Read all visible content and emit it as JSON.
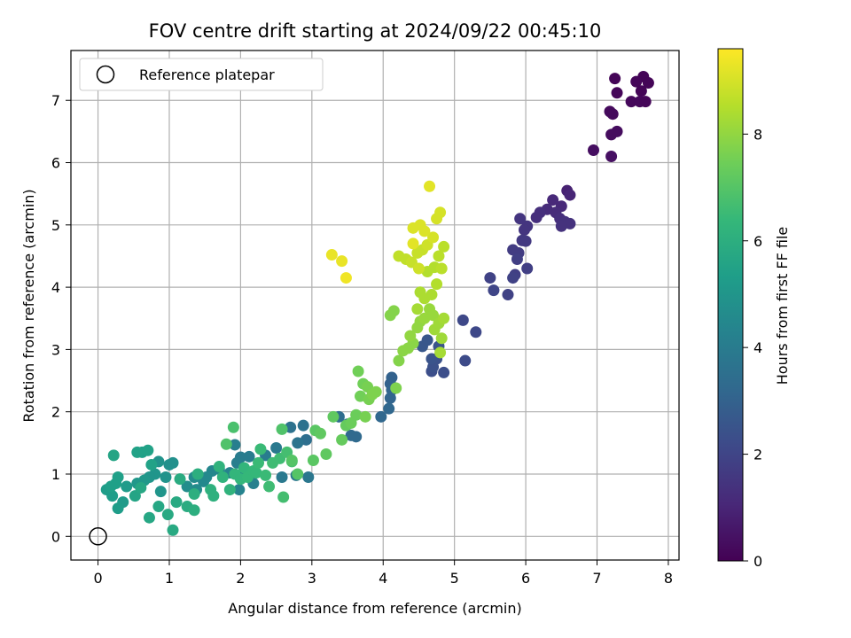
{
  "chart_data": {
    "type": "scatter",
    "title": "FOV centre drift starting at 2024/09/22 00:45:10",
    "xlabel": "Angular distance from reference (arcmin)",
    "ylabel": "Rotation from reference (arcmin)",
    "xlim": [
      -0.38,
      8.15
    ],
    "ylim": [
      -0.38,
      7.8
    ],
    "xticks": [
      0,
      1,
      2,
      3,
      4,
      5,
      6,
      7,
      8
    ],
    "yticks": [
      0,
      1,
      2,
      3,
      4,
      5,
      6,
      7
    ],
    "grid": true,
    "legend": {
      "placement": "top-left",
      "entries": [
        "Reference platepar"
      ]
    },
    "reference_point": {
      "x": 0,
      "y": 0,
      "marker": "open-circle"
    },
    "colorbar": {
      "label": "Hours from first FF file",
      "range": [
        0,
        9.6
      ],
      "ticks": [
        0,
        2,
        4,
        6,
        8
      ],
      "colormap": "viridis"
    },
    "colormap_stops": [
      "#440154",
      "#482878",
      "#3e4989",
      "#31688e",
      "#26828e",
      "#1f9e89",
      "#35b779",
      "#6ece58",
      "#b5de2b",
      "#fde725"
    ],
    "series": [
      {
        "points": [
          [
            7.25,
            7.35,
            0.1
          ],
          [
            7.65,
            7.38,
            0.1
          ],
          [
            7.72,
            7.28,
            0.1
          ],
          [
            7.55,
            7.3,
            0.15
          ],
          [
            7.62,
            7.15,
            0.1
          ],
          [
            7.28,
            7.12,
            0.15
          ],
          [
            7.48,
            6.98,
            0.2
          ],
          [
            7.6,
            6.98,
            0.2
          ],
          [
            7.68,
            6.98,
            0.15
          ],
          [
            7.18,
            6.82,
            0.25
          ],
          [
            7.22,
            6.78,
            0.25
          ],
          [
            7.28,
            6.5,
            0.3
          ],
          [
            7.2,
            6.45,
            0.3
          ],
          [
            6.95,
            6.2,
            0.35
          ],
          [
            7.2,
            6.1,
            0.4
          ],
          [
            6.58,
            5.55,
            0.9
          ],
          [
            6.62,
            5.48,
            1.0
          ],
          [
            6.38,
            5.4,
            1.1
          ],
          [
            6.5,
            5.3,
            1.1
          ],
          [
            6.3,
            5.25,
            1.2
          ],
          [
            6.42,
            5.2,
            1.2
          ],
          [
            6.2,
            5.2,
            1.3
          ],
          [
            6.15,
            5.12,
            1.3
          ],
          [
            6.48,
            5.1,
            1.3
          ],
          [
            6.55,
            5.05,
            1.4
          ],
          [
            6.62,
            5.02,
            1.4
          ],
          [
            6.5,
            4.98,
            1.4
          ],
          [
            5.92,
            5.1,
            1.5
          ],
          [
            6.02,
            4.98,
            1.5
          ],
          [
            5.98,
            4.92,
            1.5
          ],
          [
            5.95,
            4.75,
            1.6
          ],
          [
            6.0,
            4.74,
            1.6
          ],
          [
            5.82,
            4.6,
            1.7
          ],
          [
            5.9,
            4.55,
            1.7
          ],
          [
            5.88,
            4.45,
            1.8
          ],
          [
            6.02,
            4.3,
            1.8
          ],
          [
            5.85,
            4.2,
            1.8
          ],
          [
            5.82,
            4.15,
            1.9
          ],
          [
            5.75,
            3.88,
            1.9
          ],
          [
            5.5,
            4.15,
            1.9
          ],
          [
            5.55,
            3.95,
            2.0
          ],
          [
            5.12,
            3.47,
            2.1
          ],
          [
            5.3,
            3.28,
            2.1
          ],
          [
            5.15,
            2.82,
            2.2
          ],
          [
            4.85,
            2.63,
            2.3
          ],
          [
            4.68,
            2.65,
            2.3
          ],
          [
            4.75,
            2.85,
            2.4
          ],
          [
            4.7,
            2.72,
            2.4
          ],
          [
            4.68,
            2.85,
            2.5
          ],
          [
            4.78,
            3.05,
            2.5
          ],
          [
            4.55,
            3.05,
            2.6
          ],
          [
            4.62,
            3.15,
            2.6
          ],
          [
            4.12,
            2.55,
            3.0
          ],
          [
            4.1,
            2.45,
            3.0
          ],
          [
            4.12,
            2.35,
            3.1
          ],
          [
            4.1,
            2.22,
            3.1
          ],
          [
            4.08,
            2.05,
            3.2
          ],
          [
            3.97,
            1.92,
            3.2
          ],
          [
            3.62,
            1.6,
            3.3
          ],
          [
            3.55,
            1.62,
            3.3
          ],
          [
            3.38,
            1.92,
            3.4
          ],
          [
            3.5,
            1.8,
            3.5
          ],
          [
            2.92,
            1.55,
            3.5
          ],
          [
            2.88,
            1.78,
            3.6
          ],
          [
            2.7,
            1.75,
            3.6
          ],
          [
            2.8,
            1.5,
            3.7
          ],
          [
            2.95,
            0.95,
            3.8
          ],
          [
            2.78,
            0.98,
            3.8
          ],
          [
            2.58,
            0.95,
            3.9
          ],
          [
            2.5,
            1.42,
            3.9
          ],
          [
            2.35,
            1.3,
            4.0
          ],
          [
            2.12,
            1.28,
            4.0
          ],
          [
            2.0,
            1.27,
            4.0
          ],
          [
            1.92,
            1.47,
            4.1
          ],
          [
            1.95,
            1.18,
            4.1
          ],
          [
            2.05,
            1.05,
            4.2
          ],
          [
            2.18,
            0.85,
            4.2
          ],
          [
            1.98,
            0.75,
            4.3
          ],
          [
            1.85,
            1.02,
            4.3
          ],
          [
            1.7,
            1.08,
            4.4
          ],
          [
            1.6,
            1.05,
            4.4
          ],
          [
            1.52,
            0.95,
            4.5
          ],
          [
            1.48,
            0.88,
            4.5
          ],
          [
            1.38,
            0.75,
            4.6
          ],
          [
            1.35,
            0.95,
            4.6
          ],
          [
            1.25,
            0.8,
            4.7
          ],
          [
            1.05,
            1.18,
            4.8
          ],
          [
            1.0,
            1.15,
            4.8
          ],
          [
            0.85,
            1.2,
            4.9
          ],
          [
            0.95,
            0.95,
            4.9
          ],
          [
            0.8,
            1.0,
            5.0
          ],
          [
            0.88,
            0.72,
            5.0
          ],
          [
            0.72,
            0.95,
            5.0
          ],
          [
            0.65,
            0.9,
            5.1
          ],
          [
            0.55,
            0.85,
            5.1
          ],
          [
            0.4,
            0.8,
            5.2
          ],
          [
            0.35,
            0.55,
            5.2
          ],
          [
            0.28,
            0.45,
            5.3
          ],
          [
            0.2,
            0.65,
            5.3
          ],
          [
            0.12,
            0.75,
            5.3
          ],
          [
            0.18,
            0.8,
            5.4
          ],
          [
            0.25,
            0.85,
            5.4
          ],
          [
            0.28,
            0.95,
            5.4
          ],
          [
            0.62,
            1.35,
            5.4
          ],
          [
            0.55,
            1.35,
            5.5
          ],
          [
            0.7,
            1.38,
            5.5
          ],
          [
            0.75,
            1.15,
            5.5
          ],
          [
            0.22,
            1.3,
            5.6
          ],
          [
            0.52,
            0.65,
            5.6
          ],
          [
            0.6,
            0.78,
            5.7
          ],
          [
            0.72,
            0.3,
            5.7
          ],
          [
            0.85,
            0.48,
            5.7
          ],
          [
            0.98,
            0.35,
            5.8
          ],
          [
            1.05,
            0.1,
            5.8
          ],
          [
            1.1,
            0.55,
            5.8
          ],
          [
            1.15,
            0.92,
            5.9
          ],
          [
            1.25,
            0.48,
            5.9
          ],
          [
            1.35,
            0.42,
            6.0
          ],
          [
            1.35,
            0.68,
            6.0
          ],
          [
            1.4,
            1.0,
            6.0
          ],
          [
            1.58,
            0.75,
            6.1
          ],
          [
            1.62,
            0.65,
            6.1
          ],
          [
            1.7,
            1.12,
            6.2
          ],
          [
            1.75,
            0.95,
            6.2
          ],
          [
            1.85,
            0.75,
            6.2
          ],
          [
            1.92,
            1.0,
            6.3
          ],
          [
            2.0,
            0.92,
            6.3
          ],
          [
            2.05,
            1.1,
            6.3
          ],
          [
            2.1,
            0.95,
            6.4
          ],
          [
            2.18,
            1.05,
            6.4
          ],
          [
            2.22,
            1.02,
            6.4
          ],
          [
            2.25,
            1.18,
            6.5
          ],
          [
            2.28,
            1.4,
            6.5
          ],
          [
            2.35,
            0.98,
            6.5
          ],
          [
            2.4,
            0.8,
            6.6
          ],
          [
            2.45,
            1.18,
            6.6
          ],
          [
            2.55,
            1.25,
            6.6
          ],
          [
            2.6,
            0.63,
            6.7
          ],
          [
            2.65,
            1.35,
            6.7
          ],
          [
            2.72,
            1.2,
            6.8
          ],
          [
            1.9,
            1.75,
            6.8
          ],
          [
            1.8,
            1.48,
            6.9
          ],
          [
            2.58,
            1.72,
            6.9
          ],
          [
            2.72,
            1.22,
            7.0
          ],
          [
            2.8,
            1.0,
            7.0
          ],
          [
            3.05,
            1.7,
            7.1
          ],
          [
            3.02,
            1.22,
            7.1
          ],
          [
            3.12,
            1.65,
            7.2
          ],
          [
            3.2,
            1.32,
            7.2
          ],
          [
            3.3,
            1.92,
            7.2
          ],
          [
            3.42,
            1.55,
            7.3
          ],
          [
            3.48,
            1.78,
            7.3
          ],
          [
            3.55,
            1.82,
            7.4
          ],
          [
            3.62,
            1.95,
            7.4
          ],
          [
            3.65,
            2.65,
            7.5
          ],
          [
            3.68,
            2.25,
            7.5
          ],
          [
            3.72,
            2.45,
            7.5
          ],
          [
            3.78,
            2.4,
            7.6
          ],
          [
            3.8,
            2.2,
            7.6
          ],
          [
            3.75,
            1.92,
            7.6
          ],
          [
            3.85,
            2.28,
            7.7
          ],
          [
            3.9,
            2.32,
            7.7
          ],
          [
            4.18,
            2.38,
            7.7
          ],
          [
            4.1,
            3.55,
            7.8
          ],
          [
            4.15,
            3.62,
            7.8
          ],
          [
            4.22,
            2.82,
            7.8
          ],
          [
            4.28,
            2.98,
            7.9
          ],
          [
            4.35,
            3.02,
            7.9
          ],
          [
            4.42,
            3.1,
            7.9
          ],
          [
            4.38,
            3.22,
            8.0
          ],
          [
            4.48,
            3.35,
            8.0
          ],
          [
            4.52,
            3.45,
            8.0
          ],
          [
            4.58,
            3.5,
            8.1
          ],
          [
            4.65,
            3.65,
            8.1
          ],
          [
            4.7,
            3.55,
            8.1
          ],
          [
            4.72,
            3.32,
            8.2
          ],
          [
            4.78,
            3.42,
            8.2
          ],
          [
            4.82,
            3.18,
            8.2
          ],
          [
            4.8,
            2.95,
            8.3
          ],
          [
            4.85,
            3.5,
            8.3
          ],
          [
            4.48,
            3.65,
            8.3
          ],
          [
            4.52,
            3.92,
            8.4
          ],
          [
            4.58,
            3.82,
            8.4
          ],
          [
            4.68,
            3.88,
            8.4
          ],
          [
            4.75,
            4.05,
            8.5
          ],
          [
            4.62,
            4.25,
            8.5
          ],
          [
            4.72,
            4.32,
            8.5
          ],
          [
            4.78,
            4.5,
            8.6
          ],
          [
            4.82,
            4.3,
            8.6
          ],
          [
            4.85,
            4.65,
            8.6
          ],
          [
            4.22,
            4.5,
            8.7
          ],
          [
            4.32,
            4.45,
            8.7
          ],
          [
            4.4,
            4.4,
            8.8
          ],
          [
            4.48,
            4.55,
            8.8
          ],
          [
            4.55,
            4.6,
            8.8
          ],
          [
            4.5,
            4.3,
            8.9
          ],
          [
            4.62,
            4.68,
            8.9
          ],
          [
            4.7,
            4.8,
            9.0
          ],
          [
            4.75,
            5.1,
            9.0
          ],
          [
            4.8,
            5.2,
            9.0
          ],
          [
            4.42,
            4.95,
            9.1
          ],
          [
            4.52,
            5.0,
            9.1
          ],
          [
            4.58,
            4.9,
            9.1
          ],
          [
            4.65,
            5.62,
            9.2
          ],
          [
            4.42,
            4.7,
            9.2
          ],
          [
            3.28,
            4.52,
            9.3
          ],
          [
            3.42,
            4.42,
            9.3
          ],
          [
            3.48,
            4.15,
            9.4
          ]
        ]
      }
    ]
  }
}
